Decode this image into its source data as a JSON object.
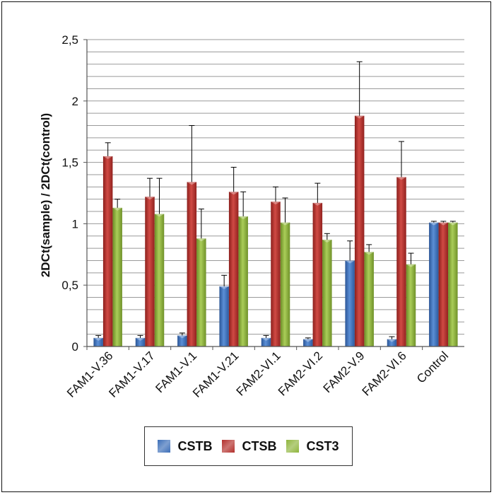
{
  "chart_data": {
    "type": "bar",
    "ylabel": "2DCt(sample) / 2DCt(control)",
    "ylim": [
      0,
      2.5
    ],
    "yticks": [
      "0",
      "0,5",
      "1",
      "1,5",
      "2",
      "2,5"
    ],
    "categories": [
      "FAM1-V.36",
      "FAM1-V.17",
      "FAM1-V.1",
      "FAM1-V.21",
      "FAM2-VI.1",
      "FAM2-VI.2",
      "FAM2-V.9",
      "FAM2-VI.6",
      "Control"
    ],
    "series": [
      {
        "name": "CSTB",
        "color": "#3d6fb8",
        "values": [
          0.07,
          0.07,
          0.09,
          0.49,
          0.07,
          0.06,
          0.7,
          0.06,
          1.01
        ],
        "errors": [
          0.02,
          0.02,
          0.02,
          0.09,
          0.02,
          0.01,
          0.16,
          0.02,
          0.01
        ]
      },
      {
        "name": "CTSB",
        "color": "#b3302c",
        "values": [
          1.55,
          1.22,
          1.34,
          1.26,
          1.18,
          1.17,
          1.88,
          1.38,
          1.01
        ],
        "errors": [
          0.11,
          0.15,
          0.46,
          0.2,
          0.12,
          0.16,
          0.44,
          0.29,
          0.01
        ]
      },
      {
        "name": "CST3",
        "color": "#8fb53d",
        "values": [
          1.13,
          1.08,
          0.88,
          1.06,
          1.01,
          0.87,
          0.77,
          0.67,
          1.01
        ],
        "errors": [
          0.07,
          0.29,
          0.24,
          0.2,
          0.2,
          0.05,
          0.06,
          0.09,
          0.01
        ]
      }
    ],
    "grid": true,
    "legend": "bottom"
  }
}
